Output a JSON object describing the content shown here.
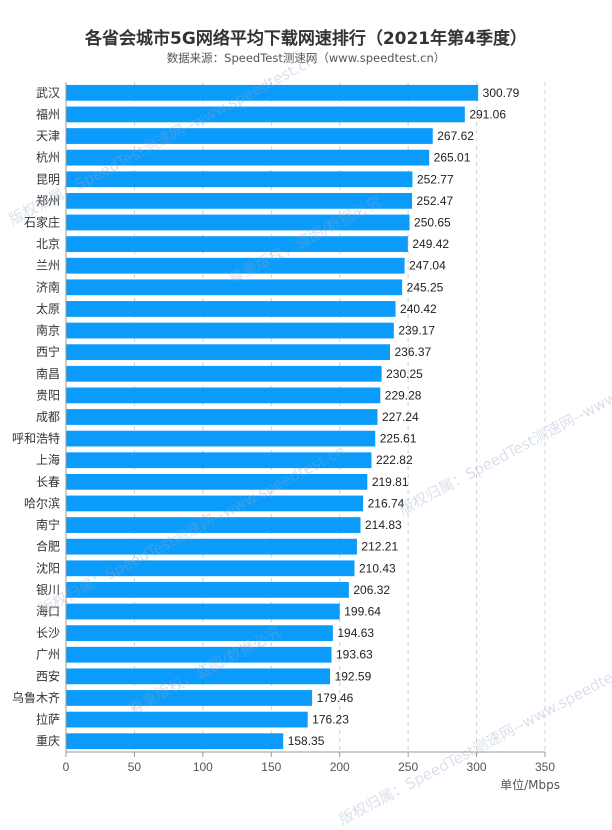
{
  "title": "各省会城市5G网络平均下载网速排行（2021年第4季度）",
  "subtitle": "数据来源：SpeedTest测速网（www.speedtest.cn）",
  "unit_label": "单位/Mbps",
  "watermark": {
    "line1": "版权归属：SpeedTest测速网--www.speedtest.cn",
    "line2": "尊重版权，盗图/数据必究"
  },
  "colors": {
    "bar": "#0a9bfb",
    "grid": "#d0d0d0",
    "axis": "#999999"
  },
  "chart_data": {
    "type": "bar",
    "orientation": "horizontal",
    "title": "各省会城市5G网络平均下载网速排行（2021年第4季度）",
    "xlabel": "单位/Mbps",
    "ylabel": "",
    "xlim": [
      0,
      350
    ],
    "xticks": [
      0,
      50,
      100,
      150,
      200,
      250,
      300,
      350
    ],
    "grid": "vertical dashed",
    "categories": [
      "武汉",
      "福州",
      "天津",
      "杭州",
      "昆明",
      "郑州",
      "石家庄",
      "北京",
      "兰州",
      "济南",
      "太原",
      "南京",
      "西宁",
      "南昌",
      "贵阳",
      "成都",
      "呼和浩特",
      "上海",
      "长春",
      "哈尔滨",
      "南宁",
      "合肥",
      "沈阳",
      "银川",
      "海口",
      "长沙",
      "广州",
      "西安",
      "乌鲁木齐",
      "拉萨",
      "重庆"
    ],
    "values": [
      300.79,
      291.06,
      267.62,
      265.01,
      252.77,
      252.47,
      250.65,
      249.42,
      247.04,
      245.25,
      240.42,
      239.17,
      236.37,
      230.25,
      229.28,
      227.24,
      225.61,
      222.82,
      219.81,
      216.74,
      214.83,
      212.21,
      210.43,
      206.32,
      199.64,
      194.63,
      193.63,
      192.59,
      179.46,
      176.23,
      158.35
    ],
    "value_labels": [
      "300.79",
      "291.06",
      "267.62",
      "265.01",
      "252.77",
      "252.47",
      "250.65",
      "249.42",
      "247.04",
      "245.25",
      "240.42",
      "239.17",
      "236.37",
      "230.25",
      "229.28",
      "227.24",
      "225.61",
      "222.82",
      "219.81",
      "216.74",
      "214.83",
      "212.21",
      "210.43",
      "206.32",
      "199.64",
      "194.63",
      "193.63",
      "192.59",
      "179.46",
      "176.23",
      "158.35"
    ]
  }
}
